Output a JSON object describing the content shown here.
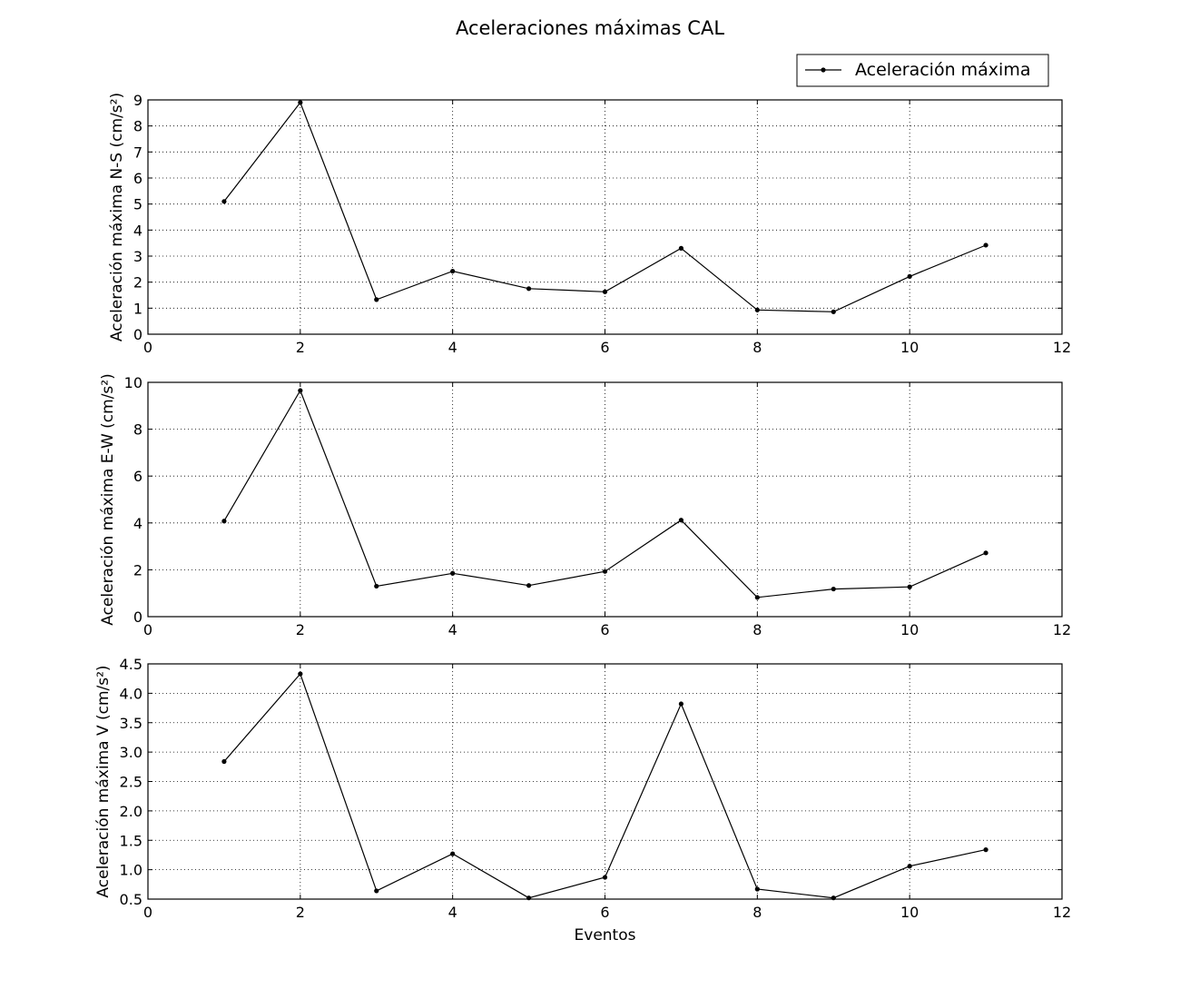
{
  "figure": {
    "title": "Aceleraciones máximas CAL",
    "legend_label": "Aceleración máxima"
  },
  "colors": {
    "line": "#000000",
    "grid": "#000000",
    "background": "#ffffff"
  },
  "chart_data": [
    {
      "type": "line",
      "title": "Aceleraciones máximas CAL",
      "xlabel": "",
      "ylabel": "Aceleración máxima N-S (cm/s²)",
      "xlim": [
        0,
        12
      ],
      "ylim": [
        0,
        9
      ],
      "xticks": [
        0,
        2,
        4,
        6,
        8,
        10,
        12
      ],
      "yticks": [
        0,
        1,
        2,
        3,
        4,
        5,
        6,
        7,
        8,
        9
      ],
      "xtick_labels": [
        "0",
        "2",
        "4",
        "6",
        "8",
        "10",
        "12"
      ],
      "ytick_labels": [
        "0",
        "1",
        "2",
        "3",
        "4",
        "5",
        "6",
        "7",
        "8",
        "9"
      ],
      "grid": true,
      "legend": "top-right",
      "series": [
        {
          "name": "Aceleración máxima",
          "x": [
            1,
            2,
            3,
            4,
            5,
            6,
            7,
            8,
            9,
            10,
            11
          ],
          "values": [
            5.1,
            8.9,
            1.33,
            2.42,
            1.75,
            1.63,
            3.3,
            0.93,
            0.86,
            2.22,
            3.42
          ]
        }
      ]
    },
    {
      "type": "line",
      "xlabel": "",
      "ylabel": "Aceleración máxima E-W (cm/s²)",
      "xlim": [
        0,
        12
      ],
      "ylim": [
        0,
        10
      ],
      "xticks": [
        0,
        2,
        4,
        6,
        8,
        10,
        12
      ],
      "yticks": [
        0,
        2,
        4,
        6,
        8,
        10
      ],
      "xtick_labels": [
        "0",
        "2",
        "4",
        "6",
        "8",
        "10",
        "12"
      ],
      "ytick_labels": [
        "0",
        "2",
        "4",
        "6",
        "8",
        "10"
      ],
      "grid": true,
      "series": [
        {
          "name": "Aceleración máxima",
          "x": [
            1,
            2,
            3,
            4,
            5,
            6,
            7,
            8,
            9,
            10,
            11
          ],
          "values": [
            4.08,
            9.65,
            1.3,
            1.85,
            1.33,
            1.93,
            4.12,
            0.82,
            1.18,
            1.27,
            2.72
          ]
        }
      ]
    },
    {
      "type": "line",
      "xlabel": "Eventos",
      "ylabel": "Aceleración máxima V (cm/s²)",
      "xlim": [
        0,
        12
      ],
      "ylim": [
        0.5,
        4.5
      ],
      "xticks": [
        0,
        2,
        4,
        6,
        8,
        10,
        12
      ],
      "yticks": [
        0.5,
        1.0,
        1.5,
        2.0,
        2.5,
        3.0,
        3.5,
        4.0,
        4.5
      ],
      "xtick_labels": [
        "0",
        "2",
        "4",
        "6",
        "8",
        "10",
        "12"
      ],
      "ytick_labels": [
        "0.5",
        "1.0",
        "1.5",
        "2.0",
        "2.5",
        "3.0",
        "3.5",
        "4.0",
        "4.5"
      ],
      "grid": true,
      "series": [
        {
          "name": "Aceleración máxima",
          "x": [
            1,
            2,
            3,
            4,
            5,
            6,
            7,
            8,
            9,
            10,
            11
          ],
          "values": [
            2.84,
            4.33,
            0.64,
            1.27,
            0.52,
            0.87,
            3.82,
            0.67,
            0.52,
            1.06,
            1.34
          ]
        }
      ]
    }
  ]
}
